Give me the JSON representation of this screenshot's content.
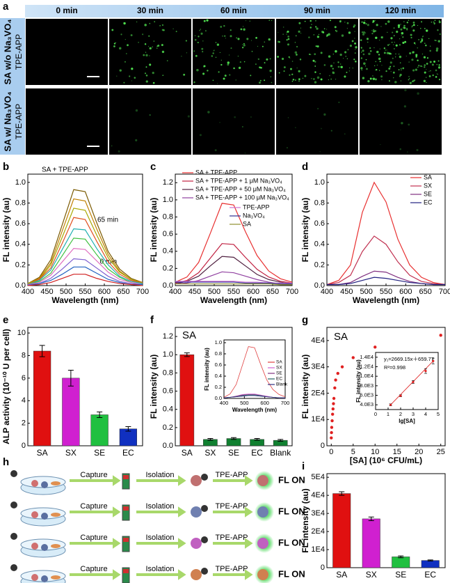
{
  "images": {
    "label": "a",
    "times": [
      "0 min",
      "30 min",
      "60 min",
      "90 min",
      "120 min"
    ],
    "rows": [
      {
        "sample": "SA w/o Na₃VO₄",
        "probe": "TPE-APP"
      },
      {
        "sample": "SA w/ Na₃VO₄",
        "probe": "TPE-APP"
      }
    ]
  },
  "scheme": {
    "label": "h",
    "rows": [
      {
        "capture": "Capture",
        "isolation": "Isolation",
        "probe": "TPE-APP",
        "result": "FL ON"
      },
      {
        "capture": "Capture",
        "isolation": "Isolation",
        "probe": "TPE-APP",
        "result": "FL ON"
      },
      {
        "capture": "Capture",
        "isolation": "Isolation",
        "probe": "TPE-APP",
        "result": "FL ON"
      },
      {
        "capture": "Capture",
        "isolation": "Isolation",
        "probe": "TPE-APP",
        "result": "FL ON"
      }
    ]
  },
  "chart_data": [
    {
      "type": "line",
      "label": "b",
      "annotations": [
        "SA + TPE-APP",
        "65 min",
        "0 min"
      ],
      "xlabel": "Wavelength (nm)",
      "ylabel": "FL intensity (au)",
      "x": [
        400,
        430,
        460,
        490,
        520,
        550,
        580,
        610,
        640,
        670,
        700
      ],
      "xlim": [
        400,
        700
      ],
      "xticks": [
        400,
        450,
        500,
        550,
        600,
        650,
        700
      ],
      "ylim": [
        0,
        1.08
      ],
      "yticks": [
        {
          "value": 0,
          "label": "0.0"
        },
        0.2,
        0.4,
        0.6,
        0.8,
        {
          "value": 1,
          "label": "1.0"
        }
      ],
      "series": [
        {
          "color": "#7a5a00",
          "values": [
            0.02,
            0.08,
            0.25,
            0.59,
            0.93,
            0.91,
            0.61,
            0.33,
            0.16,
            0.07,
            0.03
          ]
        },
        {
          "color": "#c08000",
          "values": [
            0.02,
            0.07,
            0.22,
            0.53,
            0.84,
            0.82,
            0.55,
            0.3,
            0.14,
            0.06,
            0.03
          ]
        },
        {
          "color": "#a8a800",
          "values": [
            0.02,
            0.06,
            0.2,
            0.47,
            0.75,
            0.73,
            0.49,
            0.27,
            0.13,
            0.06,
            0.02
          ]
        },
        {
          "color": "#e05020",
          "values": [
            0.01,
            0.06,
            0.17,
            0.41,
            0.66,
            0.64,
            0.43,
            0.23,
            0.11,
            0.05,
            0.02
          ]
        },
        {
          "color": "#20b0b0",
          "values": [
            0.01,
            0.05,
            0.15,
            0.35,
            0.55,
            0.54,
            0.36,
            0.2,
            0.09,
            0.04,
            0.02
          ]
        },
        {
          "color": "#40c040",
          "values": [
            0.01,
            0.04,
            0.12,
            0.29,
            0.46,
            0.45,
            0.3,
            0.16,
            0.08,
            0.03,
            0.01
          ]
        },
        {
          "color": "#e070c0",
          "values": [
            0.01,
            0.03,
            0.1,
            0.23,
            0.36,
            0.35,
            0.24,
            0.13,
            0.06,
            0.03,
            0.01
          ]
        },
        {
          "color": "#8060d0",
          "values": [
            0.01,
            0.02,
            0.07,
            0.16,
            0.26,
            0.25,
            0.17,
            0.09,
            0.04,
            0.02,
            0.01
          ]
        },
        {
          "color": "#2060c0",
          "values": [
            0,
            0.02,
            0.05,
            0.11,
            0.18,
            0.18,
            0.12,
            0.06,
            0.03,
            0.01,
            0.01
          ]
        },
        {
          "color": "#d02020",
          "values": [
            0,
            0.01,
            0.03,
            0.07,
            0.11,
            0.11,
            0.07,
            0.04,
            0.02,
            0.01,
            0
          ]
        }
      ]
    },
    {
      "type": "line",
      "label": "c",
      "xlabel": "Wavelength (nm)",
      "ylabel": "FL intensity (au)",
      "x": [
        400,
        430,
        460,
        490,
        520,
        550,
        580,
        610,
        640,
        670,
        700
      ],
      "xlim": [
        400,
        700
      ],
      "xticks": [
        400,
        450,
        500,
        550,
        600,
        650,
        700
      ],
      "ylim": [
        0,
        1.3
      ],
      "yticks": [
        {
          "value": 0,
          "label": "0.0"
        },
        0.2,
        0.4,
        0.6,
        0.8,
        {
          "value": 1,
          "label": "1.0"
        },
        1.2
      ],
      "series": [
        {
          "name": "SA + TPE-APP",
          "color": "#e83030",
          "values": [
            0.04,
            0.1,
            0.27,
            0.61,
            0.96,
            0.94,
            0.63,
            0.35,
            0.17,
            0.08,
            0.04
          ]
        },
        {
          "name": "SA + TPE-APP + 1 μM Na₃VO₄",
          "color": "#c02040",
          "values": [
            0.03,
            0.06,
            0.15,
            0.32,
            0.49,
            0.48,
            0.33,
            0.19,
            0.1,
            0.05,
            0.03
          ]
        },
        {
          "name": "SA + TPE-APP + 50 μM Na₃VO₄",
          "color": "#502040",
          "values": [
            0.02,
            0.05,
            0.11,
            0.23,
            0.34,
            0.33,
            0.23,
            0.13,
            0.07,
            0.04,
            0.02
          ]
        },
        {
          "name": "SA + TPE-APP + 100 μM Na₃VO₄",
          "color": "#9040a0",
          "values": [
            0.02,
            0.03,
            0.06,
            0.11,
            0.16,
            0.15,
            0.11,
            0.07,
            0.04,
            0.02,
            0.01
          ]
        },
        {
          "name": "TPE-APP",
          "color": "#d070d0",
          "values": [
            0.05,
            0.05,
            0.05,
            0.05,
            0.05,
            0.05,
            0.04,
            0.04,
            0.03,
            0.03,
            0.03
          ]
        },
        {
          "name": "Na₃VO₄",
          "color": "#303090",
          "values": [
            0.04,
            0.04,
            0.04,
            0.04,
            0.04,
            0.04,
            0.03,
            0.03,
            0.03,
            0.02,
            0.02
          ]
        },
        {
          "name": "SA",
          "color": "#909030",
          "values": [
            0.02,
            0.02,
            0.02,
            0.02,
            0.02,
            0.02,
            0.02,
            0.02,
            0.02,
            0.01,
            0.01
          ]
        }
      ]
    },
    {
      "type": "line",
      "label": "d",
      "ylabel": "FL intensity (au)",
      "xlabel": "Wavelength (nm)",
      "x": [
        400,
        430,
        460,
        490,
        520,
        550,
        580,
        610,
        640,
        670,
        700
      ],
      "xlim": [
        400,
        700
      ],
      "xticks": [
        400,
        450,
        500,
        550,
        600,
        650,
        700
      ],
      "ylim": [
        0,
        1.08
      ],
      "yticks": [
        {
          "value": 0,
          "label": "0.0"
        },
        0.2,
        0.4,
        0.6,
        0.8,
        {
          "value": 1,
          "label": "1.0"
        }
      ],
      "series": [
        {
          "name": "SA",
          "color": "#e83030",
          "values": [
            0.01,
            0.05,
            0.2,
            0.71,
            1.0,
            0.81,
            0.45,
            0.2,
            0.08,
            0.03,
            0.01
          ]
        },
        {
          "name": "SX",
          "color": "#c03050",
          "values": [
            0.01,
            0.03,
            0.1,
            0.33,
            0.48,
            0.4,
            0.23,
            0.1,
            0.04,
            0.02,
            0.01
          ]
        },
        {
          "name": "SE",
          "color": "#803080",
          "values": [
            0.01,
            0.01,
            0.03,
            0.09,
            0.14,
            0.13,
            0.08,
            0.04,
            0.02,
            0.01,
            0.01
          ]
        },
        {
          "name": "EC",
          "color": "#202080",
          "values": [
            0.01,
            0.01,
            0.02,
            0.05,
            0.08,
            0.07,
            0.05,
            0.03,
            0.02,
            0.01,
            0.01
          ]
        }
      ]
    },
    {
      "type": "bar",
      "label": "e",
      "ylabel": "ALP activity (10⁻¹⁰ U per cell)",
      "categories": [
        "SA",
        "SX",
        "SE",
        "EC"
      ],
      "values": [
        8.4,
        6.0,
        2.75,
        1.5
      ],
      "errors": [
        0.5,
        0.7,
        0.25,
        0.2
      ],
      "colors": [
        "#e01010",
        "#d020d0",
        "#20c040",
        "#1030c0"
      ],
      "ylim": [
        0,
        10.5
      ],
      "yticks": [
        0,
        2,
        4,
        6,
        8,
        10
      ]
    },
    {
      "type": "bar",
      "label": "f",
      "title": "SA",
      "ylabel": "FL intensity (au)",
      "categories": [
        "SA",
        "SX",
        "SE",
        "EC",
        "Blank"
      ],
      "values": [
        1.0,
        0.07,
        0.08,
        0.07,
        0.06
      ],
      "errors": [
        0.02,
        0.01,
        0.01,
        0.01,
        0.01
      ],
      "colors": [
        "#e01010",
        "#108030",
        "#108030",
        "#108030",
        "#108030"
      ],
      "ylim": [
        0,
        1.3
      ],
      "yticks": [
        {
          "value": 0,
          "label": "0.0"
        },
        0.2,
        0.4,
        0.6,
        0.8,
        {
          "value": 1,
          "label": "1.0"
        },
        1.2
      ]
    },
    {
      "type": "line",
      "xlabel": "Wavelength (nm)",
      "ylabel": "FL intensity (au)",
      "x": [
        400,
        430,
        460,
        490,
        520,
        550,
        580,
        610,
        640,
        670,
        700
      ],
      "xlim": [
        400,
        700
      ],
      "xticks": [
        400,
        500,
        600,
        700
      ],
      "ylim": [
        0,
        1.05
      ],
      "yticks": [
        {
          "value": 0,
          "label": "0.0"
        },
        0.2,
        0.4,
        0.6,
        0.8,
        {
          "value": 1,
          "label": "1.0"
        }
      ],
      "series": [
        {
          "name": "SA",
          "color": "#e04040",
          "values": [
            0.02,
            0.08,
            0.25,
            0.59,
            0.93,
            0.91,
            0.61,
            0.33,
            0.16,
            0.07,
            0.03
          ]
        },
        {
          "name": "SX",
          "color": "#d060d0",
          "values": [
            0.01,
            0.02,
            0.04,
            0.07,
            0.08,
            0.08,
            0.06,
            0.04,
            0.02,
            0.01,
            0.01
          ]
        },
        {
          "name": "SE",
          "color": "#803080",
          "values": [
            0.01,
            0.02,
            0.04,
            0.06,
            0.07,
            0.07,
            0.05,
            0.03,
            0.02,
            0.01,
            0.01
          ]
        },
        {
          "name": "EC",
          "color": "#206060",
          "values": [
            0.01,
            0.02,
            0.03,
            0.05,
            0.06,
            0.06,
            0.05,
            0.03,
            0.02,
            0.01,
            0.01
          ]
        },
        {
          "name": "Blank",
          "color": "#303080",
          "values": [
            0.01,
            0.02,
            0.03,
            0.04,
            0.05,
            0.05,
            0.04,
            0.03,
            0.02,
            0.01,
            0.01
          ]
        }
      ]
    },
    {
      "type": "scatter",
      "label": "g",
      "title": "SA",
      "xlabel": "[SA] (10⁶ CFU/mL)",
      "ylabel": "FL intensity (au)",
      "color": "#e02020",
      "x": [
        0,
        0.05,
        0.1,
        0.2,
        0.3,
        0.4,
        0.5,
        0.6,
        0.8,
        1,
        1.5,
        2.5,
        5,
        10,
        25
      ],
      "values": [
        3000,
        5000,
        7000,
        9500,
        12000,
        14000,
        16000,
        18000,
        22000,
        25000,
        27500,
        30000,
        33500,
        37500,
        42000
      ],
      "xlim": [
        -1,
        26
      ],
      "xticks": [
        0,
        5,
        10,
        15,
        20,
        25
      ],
      "ylim": [
        0,
        45000
      ],
      "yticks": [
        0,
        {
          "value": 10000,
          "label": "1E4"
        },
        {
          "value": 20000,
          "label": "2E4"
        },
        {
          "value": 30000,
          "label": "3E4"
        },
        {
          "value": 40000,
          "label": "4E4"
        }
      ]
    },
    {
      "type": "scatter",
      "xlabel": "lg[SA]",
      "ylabel": "FL intensity (au)",
      "color": "#e02020",
      "fit": true,
      "annotations": [
        "y₁=2669.15x＋659.77",
        "R²=0.998"
      ],
      "x": [
        1.2,
        2,
        3,
        4,
        4.6
      ],
      "values": [
        4000,
        5900,
        8800,
        11100,
        13200
      ],
      "errors": [
        200,
        200,
        300,
        500,
        600
      ],
      "xlim": [
        0,
        5
      ],
      "xticks": [
        0,
        1,
        2,
        3,
        4,
        5
      ],
      "ylim": [
        3000,
        15000
      ],
      "yticks": [
        {
          "value": 4000,
          "label": "4.0E3"
        },
        {
          "value": 6000,
          "label": "6.0E3"
        },
        {
          "value": 8000,
          "label": "8.0E3"
        },
        {
          "value": 10000,
          "label": "1.0E4"
        },
        {
          "value": 12000,
          "label": "1.2E4"
        },
        {
          "value": 14000,
          "label": "1.4E4"
        }
      ]
    },
    {
      "type": "bar",
      "label": "i",
      "ylabel": "FL intensity (au)",
      "categories": [
        "SA",
        "SX",
        "SE",
        "EC"
      ],
      "values": [
        41000,
        27000,
        6000,
        4000
      ],
      "errors": [
        1000,
        1000,
        500,
        300
      ],
      "colors": [
        "#e01010",
        "#d020d0",
        "#20c040",
        "#1030c0"
      ],
      "ylim": [
        0,
        52000
      ],
      "yticks": [
        0,
        {
          "value": 10000,
          "label": "1E4"
        },
        {
          "value": 20000,
          "label": "2E4"
        },
        {
          "value": 30000,
          "label": "3E4"
        },
        {
          "value": 40000,
          "label": "4E4"
        },
        {
          "value": 50000,
          "label": "5E4"
        }
      ]
    }
  ]
}
